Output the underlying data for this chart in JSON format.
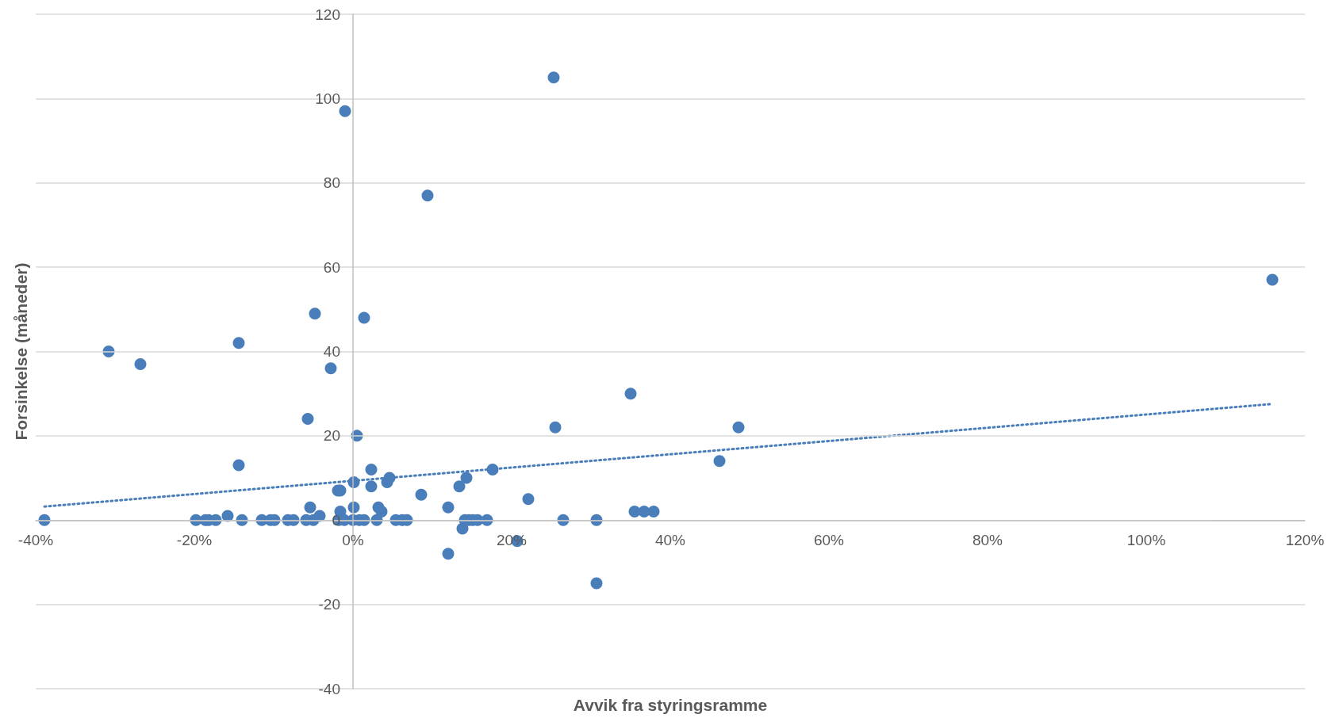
{
  "chart_data": {
    "type": "scatter",
    "xlabel": "Avvik fra styringsramme",
    "ylabel": "Forsinkelse (måneder)",
    "xlim": [
      -40,
      120
    ],
    "xticks": [
      {
        "value": -40,
        "label": "-40%"
      },
      {
        "value": -20,
        "label": "-20%"
      },
      {
        "value": 0,
        "label": "0%"
      },
      {
        "value": 20,
        "label": "20%"
      },
      {
        "value": 40,
        "label": "40%"
      },
      {
        "value": 60,
        "label": "60%"
      },
      {
        "value": 80,
        "label": "80%"
      },
      {
        "value": 100,
        "label": "100%"
      },
      {
        "value": 120,
        "label": "120%"
      }
    ],
    "ylim": [
      -40,
      120
    ],
    "yticks": [
      -40,
      -20,
      0,
      20,
      40,
      60,
      80,
      100,
      120
    ],
    "grid": "y",
    "marker": "circle",
    "series": [
      {
        "color": "#4a7ebb",
        "x": [
          -38.9,
          -30.8,
          -26.8,
          -14.4,
          -14.4,
          -19.8,
          -18.6,
          -18.2,
          -17.3,
          -15.8,
          -14,
          -11.5,
          -10.4,
          -9.9,
          -8.2,
          -7.5,
          -5.9,
          -5.4,
          -5,
          -4.2,
          -4.8,
          -5.7,
          -2.8,
          -1.9,
          -1.6,
          -1.6,
          -1.8,
          -1,
          -1.1,
          0.1,
          0.1,
          0.5,
          0,
          0.8,
          1.4,
          1.4,
          2.3,
          2.3,
          3,
          3.2,
          3.6,
          4.3,
          4.6,
          5.4,
          6.2,
          6.8,
          8.6,
          9.4,
          12,
          12,
          13.4,
          13.8,
          14.1,
          14.3,
          14.6,
          15.1,
          15.7,
          16.9,
          17.6,
          20.7,
          22.1,
          25.3,
          25.5,
          26.5,
          30.7,
          30.7,
          35,
          35.5,
          36.7,
          37.9,
          46.2,
          48.6,
          115.9
        ],
        "values": [
          0,
          40,
          37,
          42,
          13,
          0,
          0,
          0,
          0,
          1,
          0,
          0,
          0,
          0,
          0,
          0,
          0,
          3,
          0,
          1,
          49,
          24,
          36,
          7,
          7,
          2,
          0,
          97,
          0,
          9,
          3,
          20,
          0,
          0,
          0,
          48,
          12,
          8,
          0,
          3,
          2,
          9,
          10,
          0,
          0,
          0,
          6,
          77,
          3,
          -8,
          8,
          -2,
          0,
          10,
          0,
          0,
          0,
          0,
          12,
          -5,
          5,
          105,
          22,
          0,
          0,
          -15,
          30,
          2,
          2,
          2,
          14,
          22,
          57
        ]
      },
      {
        "type": "line",
        "color": "#4a7ebb",
        "line_style": "dotted",
        "marker": "none",
        "x": [
          -38.9,
          115.6
        ],
        "values": [
          3.2,
          27.5
        ]
      }
    ]
  }
}
